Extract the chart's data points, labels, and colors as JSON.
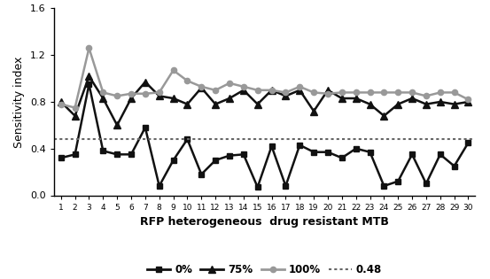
{
  "x": [
    1,
    2,
    3,
    4,
    5,
    6,
    7,
    8,
    9,
    10,
    11,
    12,
    13,
    14,
    15,
    16,
    17,
    18,
    19,
    20,
    21,
    22,
    23,
    24,
    25,
    26,
    27,
    28,
    29,
    30
  ],
  "series_0pct": [
    0.32,
    0.35,
    0.95,
    0.38,
    0.35,
    0.35,
    0.58,
    0.08,
    0.3,
    0.48,
    0.18,
    0.3,
    0.34,
    0.35,
    0.07,
    0.42,
    0.08,
    0.43,
    0.37,
    0.37,
    0.32,
    0.4,
    0.37,
    0.08,
    0.12,
    0.35,
    0.1,
    0.35,
    0.25,
    0.45
  ],
  "series_75pct": [
    0.8,
    0.68,
    1.02,
    0.83,
    0.6,
    0.83,
    0.97,
    0.85,
    0.83,
    0.78,
    0.92,
    0.78,
    0.83,
    0.9,
    0.78,
    0.9,
    0.85,
    0.9,
    0.72,
    0.9,
    0.83,
    0.83,
    0.78,
    0.68,
    0.78,
    0.83,
    0.78,
    0.8,
    0.78,
    0.8
  ],
  "series_100pct": [
    0.78,
    0.75,
    1.26,
    0.88,
    0.85,
    0.87,
    0.87,
    0.88,
    1.07,
    0.98,
    0.93,
    0.9,
    0.96,
    0.93,
    0.9,
    0.9,
    0.88,
    0.93,
    0.88,
    0.87,
    0.88,
    0.88,
    0.88,
    0.88,
    0.88,
    0.88,
    0.85,
    0.88,
    0.88,
    0.82
  ],
  "hline_y": 0.48,
  "xlabel": "RFP heterogeneous  drug resistant MTB",
  "ylabel": "Sensitivity index",
  "ylim": [
    0,
    1.6
  ],
  "yticks": [
    0,
    0.4,
    0.8,
    1.2,
    1.6
  ],
  "color_0pct": "#111111",
  "color_75pct": "#111111",
  "color_100pct": "#999999",
  "color_hline": "#666666",
  "legend_labels": [
    "0%",
    "75%",
    "100%",
    "0.48"
  ],
  "title": ""
}
